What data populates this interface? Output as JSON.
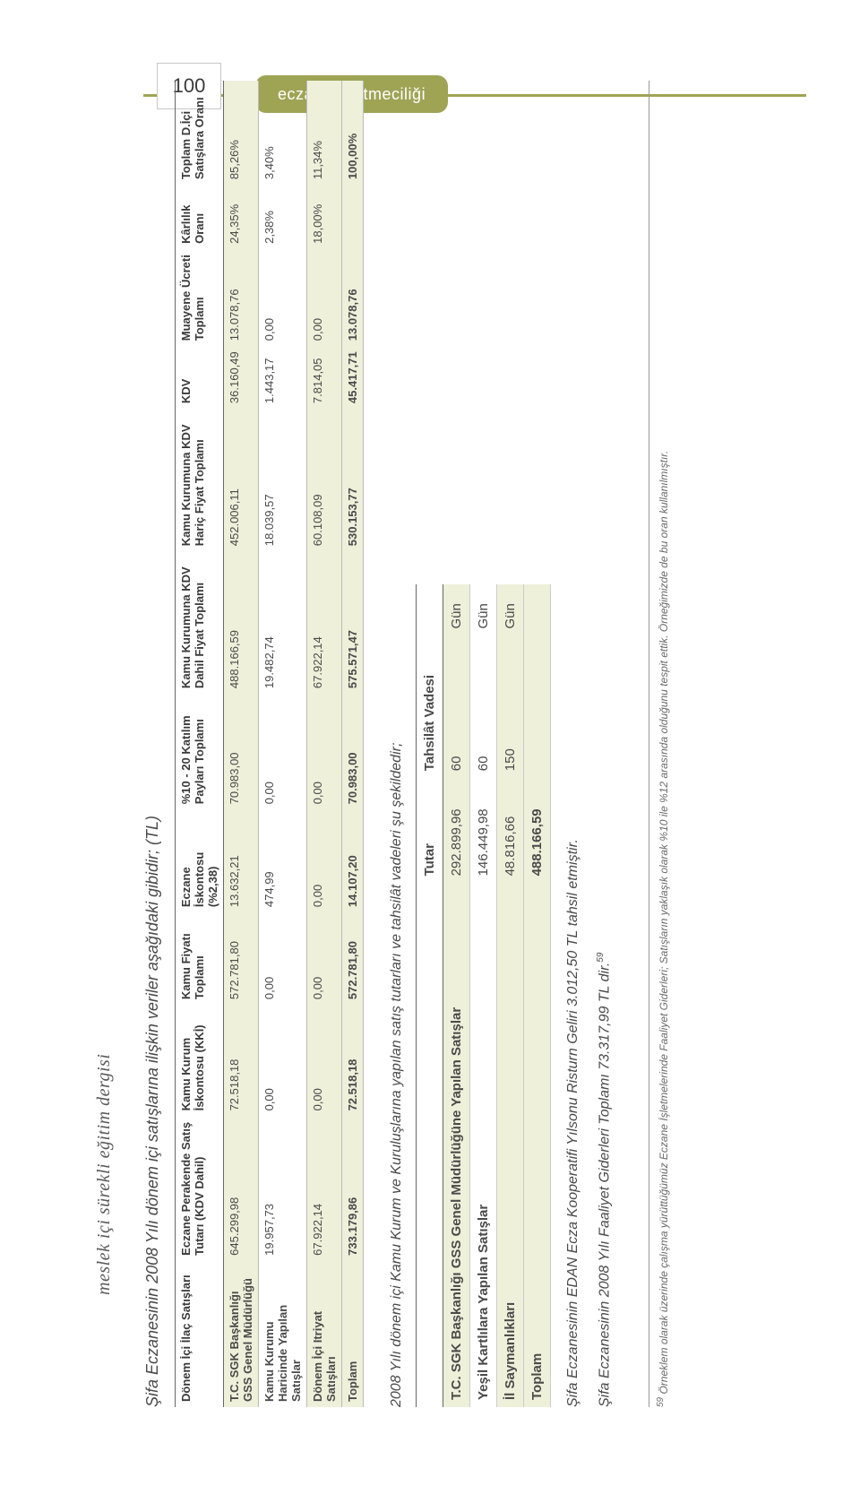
{
  "page_number": "100",
  "tab_label": "eczane işletmeciliği",
  "side_text": "meslek içi sürekli eğitim dergisi",
  "intro": "Şifa Eczanesinin 2008 Yılı dönem içi satışlarına ilişkin veriler aşağıdaki gibidir; (TL)",
  "table1": {
    "headers": [
      "Dönem İçi İlaç Satışları",
      "Eczane Perakende Satış Tutarı (KDV Dahil)",
      "Kamu Kurum İskontosu (KKİ)",
      "Kamu Fiyatı Toplamı",
      "Eczane İskontosu (%2,38)",
      "%10 - 20 Katılım Payları Toplamı",
      "Kamu Kurumuna KDV Dahil Fiyat Toplamı",
      "Kamu Kurumuna KDV Hariç Fiyat Toplamı",
      "KDV",
      "Muayene Ücreti Toplamı",
      "Kârlılık Oranı",
      "Toplam D.İçi Satışlara Oranı"
    ],
    "rows": [
      {
        "label": "T.C. SGK Başkanlığı GSS Genel Müdürlüğü",
        "cells": [
          "645.299,98",
          "72.518,18",
          "572.781,80",
          "13.632,21",
          "70.983,00",
          "488.166,59",
          "452.006,11",
          "36.160,49",
          "13.078,76",
          "24,35%",
          "85,26%"
        ],
        "shade": true
      },
      {
        "label": "Kamu Kurumu Haricinde Yapılan Satışlar",
        "cells": [
          "19.957,73",
          "0,00",
          "0,00",
          "474,99",
          "0,00",
          "19.482,74",
          "18.039,57",
          "1.443,17",
          "0,00",
          "2,38%",
          "3,40%"
        ],
        "shade": false
      },
      {
        "label": "Dönem İçi Itriyat Satışları",
        "cells": [
          "67.922,14",
          "0,00",
          "0,00",
          "0,00",
          "0,00",
          "67.922,14",
          "60.108,09",
          "7.814,05",
          "0,00",
          "18,00%",
          "11,34%"
        ],
        "shade": true
      },
      {
        "label": "Toplam",
        "cells": [
          "733.179,86",
          "72.518,18",
          "572.781,80",
          "14.107,20",
          "70.983,00",
          "575.571,47",
          "530.153,77",
          "45.417,71",
          "13.078,76",
          "",
          "100,00%"
        ],
        "total": true
      }
    ]
  },
  "mid_text": "2008 Yılı dönem içi Kamu Kurum ve Kuruluşlarına yapılan satış tutarları ve tahsilât vadeleri şu şekildedir;",
  "table2": {
    "headers": [
      "",
      "Tutar",
      "Tahsilât Vadesi",
      ""
    ],
    "rows": [
      {
        "label": "T.C. SGK Başkanlığı GSS Genel Müdürlüğüne Yapılan Satışlar",
        "amount": "292.899,96",
        "days": "60",
        "unit": "Gün",
        "shade": true
      },
      {
        "label": "Yeşil Kartlılara Yapılan Satışlar",
        "amount": "146.449,98",
        "days": "60",
        "unit": "Gün",
        "shade": false
      },
      {
        "label": "İl Saymanlıkları",
        "amount": "48.816,66",
        "days": "150",
        "unit": "Gün",
        "shade": true
      },
      {
        "label": "Toplam",
        "amount": "488.166,59",
        "days": "",
        "unit": "",
        "total": true
      }
    ]
  },
  "narrative1": "Şifa Eczanesinin EDAN Ecza Kooperatifi Yılsonu Risturn Geliri 3.012,50 TL tahsil etmiştir.",
  "narrative2_a": "Şifa Eczanesinin 2008 Yılı Faaliyet Giderleri Toplamı 73.317,99 TL dir.",
  "narrative2_sup": "59",
  "footnote_num": "59",
  "footnote": "Örneklem olarak üzerinde çalışma yürüttüğümüz Eczane İşletmelerinde Faaliyet Giderleri; Satışların yaklaşık olarak %10 ile %12 arasında olduğunu tespit ettik. Örneğimizde de bu oran kullanılmıştır."
}
